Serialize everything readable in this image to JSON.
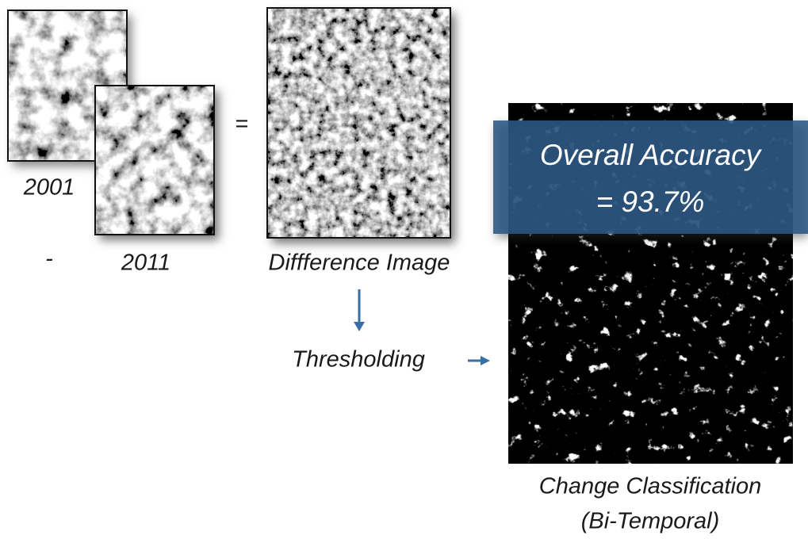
{
  "labels": {
    "year_a": "2001",
    "minus": "-",
    "year_b": "2011",
    "equals": "=",
    "difference": "Diffference Image",
    "thresholding": "Thresholding",
    "accuracy_title": "Overall Accuracy",
    "accuracy_value": "= 93.7%",
    "result_line1": "Change Classification",
    "result_line2": "(Bi-Temporal)"
  }
}
